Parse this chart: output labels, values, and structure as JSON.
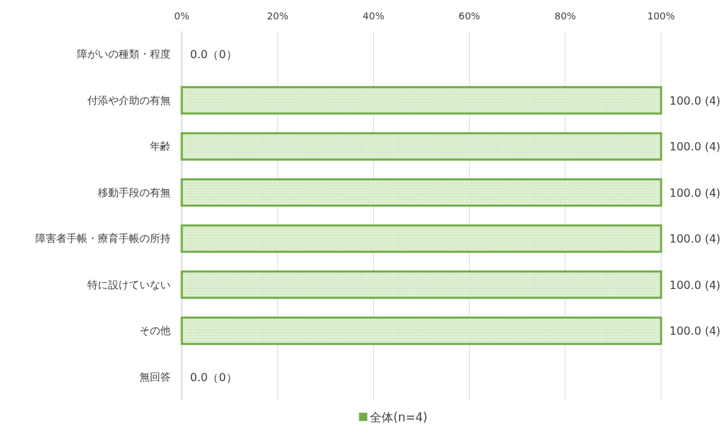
{
  "chart_data": {
    "type": "bar",
    "orientation": "horizontal",
    "categories": [
      "障がいの種類・程度",
      "付添や介助の有無",
      "年齢",
      "移動手段の有無",
      "障害者手帳・療育手帳の所持",
      "特に設けていない",
      "その他",
      "無回答"
    ],
    "series": [
      {
        "name": "全体(n=4)",
        "color": "#70ad47",
        "values": [
          0,
          100,
          100,
          100,
          100,
          100,
          100,
          0
        ],
        "value_labels": [
          "0.0（0）",
          "100.0 (4)",
          "100.0 (4)",
          "100.0 (4)",
          "100.0 (4)",
          "100.0 (4)",
          "100.0 (4)",
          "0.0（0）"
        ]
      }
    ],
    "xlim": [
      0,
      100
    ],
    "xticks": [
      {
        "value": 0,
        "label": "0%"
      },
      {
        "value": 20,
        "label": "20%"
      },
      {
        "value": 40,
        "label": "40%"
      },
      {
        "value": 60,
        "label": "60%"
      },
      {
        "value": 80,
        "label": "80%"
      },
      {
        "value": 100,
        "label": "100%"
      }
    ],
    "grid": "x",
    "legend": "bottom"
  }
}
